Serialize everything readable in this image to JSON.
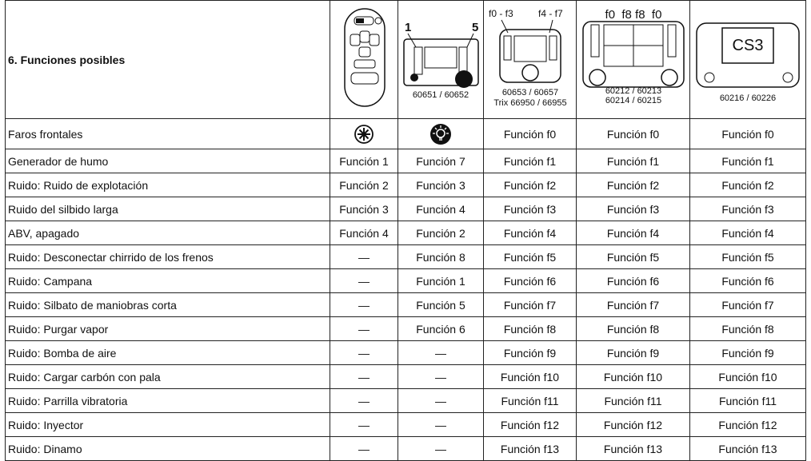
{
  "title": "6. Funciones posibles",
  "devices": [
    {
      "labels": []
    },
    {
      "labels": [
        "1",
        "5",
        "60651 / 60652"
      ]
    },
    {
      "labels": [
        "f0 - f3",
        "f4 - f7",
        "60653 / 60657",
        "Trix 66950 / 66955"
      ]
    },
    {
      "labels": [
        "f0  f8 f8  f0",
        "60212 / 60213",
        "60214 / 60215"
      ]
    },
    {
      "labels": [
        "CS3",
        "60216 / 60226"
      ]
    }
  ],
  "rows": [
    {
      "label": "Faros frontales",
      "cells": [
        "Función f0",
        "Función f0",
        "Función f0"
      ]
    },
    {
      "label": "Generador de humo",
      "cells": [
        "Función 1",
        "Función 7",
        "Función f1",
        "Función f1",
        "Función f1"
      ]
    },
    {
      "label": "Ruido: Ruido de explotación",
      "cells": [
        "Función 2",
        "Función 3",
        "Función f2",
        "Función f2",
        "Función f2"
      ]
    },
    {
      "label": "Ruido del silbido larga",
      "cells": [
        "Función 3",
        "Función 4",
        "Función f3",
        "Función f3",
        "Función f3"
      ]
    },
    {
      "label": "ABV, apagado",
      "cells": [
        "Función 4",
        "Función 2",
        "Función f4",
        "Función f4",
        "Función f4"
      ]
    },
    {
      "label": "Ruido: Desconectar chirrido de los frenos",
      "cells": [
        "—",
        "Función 8",
        "Función f5",
        "Función f5",
        "Función f5"
      ]
    },
    {
      "label": "Ruido: Campana",
      "cells": [
        "—",
        "Función 1",
        "Función f6",
        "Función f6",
        "Función f6"
      ]
    },
    {
      "label": "Ruido: Silbato de maniobras corta",
      "cells": [
        "—",
        "Función 5",
        "Función f7",
        "Función f7",
        "Función f7"
      ]
    },
    {
      "label": "Ruido: Purgar vapor",
      "cells": [
        "—",
        "Función 6",
        "Función f8",
        "Función f8",
        "Función f8"
      ]
    },
    {
      "label": "Ruido: Bomba de aire",
      "cells": [
        "—",
        "—",
        "Función f9",
        "Función f9",
        "Función f9"
      ]
    },
    {
      "label": "Ruido: Cargar carbón con pala",
      "cells": [
        "—",
        "—",
        "Función f10",
        "Función f10",
        "Función f10"
      ]
    },
    {
      "label": "Ruido: Parrilla vibratoria",
      "cells": [
        "—",
        "—",
        "Función f11",
        "Función f11",
        "Función f11"
      ]
    },
    {
      "label": "Ruido: Inyector",
      "cells": [
        "—",
        "—",
        "Función f12",
        "Función f12",
        "Función f12"
      ]
    },
    {
      "label": "Ruido: Dinamo",
      "cells": [
        "—",
        "—",
        "Función f13",
        "Función f13",
        "Función f13"
      ]
    }
  ]
}
